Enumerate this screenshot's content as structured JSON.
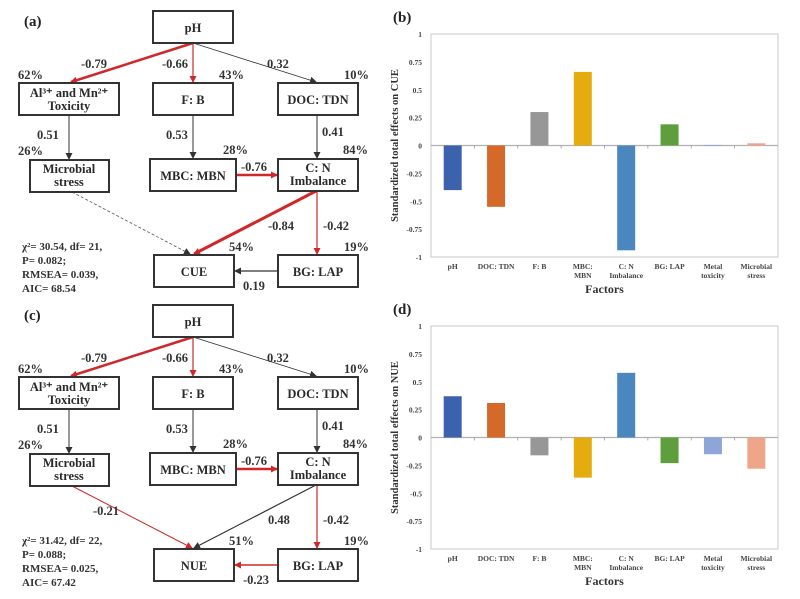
{
  "diagrams": [
    {
      "panel": "(a)",
      "outcome": "CUE",
      "nodes": {
        "ph": "pH",
        "al_line1": "Al³⁺ and Mn²⁺",
        "al_line2": "Toxicity",
        "fb": "F: B",
        "doc": "DOC: TDN",
        "ms_line1": "Microbial",
        "ms_line2": "stress",
        "mbc": "MBC: MBN",
        "cn_line1": "C: N",
        "cn_line2": "Imbalance",
        "out": "CUE",
        "bg": "BG: LAP"
      },
      "r2": {
        "al": "62%",
        "fb": "43%",
        "doc": "10%",
        "ms": "26%",
        "mbc": "28%",
        "cn": "84%",
        "out": "54%",
        "bg": "19%"
      },
      "paths": {
        "ph_al": "-0.79",
        "ph_fb": "-0.66",
        "ph_doc": "0.32",
        "al_ms": "0.51",
        "fb_mbc": "0.53",
        "doc_cn": "0.41",
        "mbc_cn": "-0.76",
        "cn_out": "-0.84",
        "cn_bg": "-0.42",
        "bg_out": "0.19",
        "ms_out": ""
      },
      "stats": {
        "chi": "χ²= 30.54, df= 21,",
        "p": "P= 0.082;",
        "rmsea": "RMSEA= 0.039,",
        "aic": "AIC= 68.54"
      }
    },
    {
      "panel": "(c)",
      "outcome": "NUE",
      "nodes": {
        "ph": "pH",
        "al_line1": "Al³⁺ and Mn²⁺",
        "al_line2": "Toxicity",
        "fb": "F: B",
        "doc": "DOC: TDN",
        "ms_line1": "Microbial",
        "ms_line2": "stress",
        "mbc": "MBC: MBN",
        "cn_line1": "C: N",
        "cn_line2": "Imbalance",
        "out": "NUE",
        "bg": "BG: LAP"
      },
      "r2": {
        "al": "62%",
        "fb": "43%",
        "doc": "10%",
        "ms": "26%",
        "mbc": "28%",
        "cn": "84%",
        "out": "51%",
        "bg": "19%"
      },
      "paths": {
        "ph_al": "-0.79",
        "ph_fb": "-0.66",
        "ph_doc": "0.32",
        "al_ms": "0.51",
        "fb_mbc": "0.53",
        "doc_cn": "0.41",
        "mbc_cn": "-0.76",
        "cn_out": "0.48",
        "cn_bg": "-0.42",
        "bg_out": "-0.23",
        "ms_out": "-0.21"
      },
      "stats": {
        "chi": "χ²= 31.42, df= 22,",
        "p": "P= 0.088;",
        "rmsea": "RMSEA= 0.025,",
        "aic": "AIC= 67.42"
      }
    }
  ],
  "chart_data": [
    {
      "type": "bar",
      "panel": "(b)",
      "title": "",
      "xlabel": "Factors",
      "ylabel": "Standardized  total effects on CUE",
      "ylim": [
        -1,
        1
      ],
      "yticks": [
        "1",
        "0.75",
        "0.5",
        "0.25",
        "0",
        "-0.25",
        "-0.5",
        "-0.75",
        "-1"
      ],
      "categories": [
        "pH",
        "DOC: TDN",
        "F: B",
        "MBC: MBN",
        "C: N Imbalance",
        "BG: LAP",
        "Metal toxicity",
        "Microbial stress"
      ],
      "category_lines": [
        [
          "pH"
        ],
        [
          "DOC: TDN"
        ],
        [
          "F: B"
        ],
        [
          "MBC:",
          "MBN"
        ],
        [
          "C: N",
          "Imbalance"
        ],
        [
          "BG: LAP"
        ],
        [
          "Metal",
          "toxicity"
        ],
        [
          "Microbial",
          "stress"
        ]
      ],
      "values": [
        -0.4,
        -0.55,
        0.3,
        0.66,
        -0.94,
        0.19,
        0.005,
        0.02
      ],
      "colors": [
        "#3d62ad",
        "#d4692a",
        "#979797",
        "#e5ac10",
        "#4a87bf",
        "#5f9e3c",
        "#8ea5d8",
        "#eea58a"
      ]
    },
    {
      "type": "bar",
      "panel": "(d)",
      "title": "",
      "xlabel": "Factors",
      "ylabel": "Standardized  total effects on NUE",
      "ylim": [
        -1,
        1
      ],
      "yticks": [
        "1",
        "0.75",
        "0.5",
        "0.25",
        "0",
        "-0.25",
        "-0.5",
        "-0.75",
        "-1"
      ],
      "categories": [
        "pH",
        "DOC: TDN",
        "F: B",
        "MBC: MBN",
        "C: N Imbalance",
        "BG: LAP",
        "Metal toxicity",
        "Microbial stress"
      ],
      "category_lines": [
        [
          "pH"
        ],
        [
          "DOC: TDN"
        ],
        [
          "F: B"
        ],
        [
          "MBC:",
          "MBN"
        ],
        [
          "C: N",
          "Imbalance"
        ],
        [
          "BG: LAP"
        ],
        [
          "Metal",
          "toxicity"
        ],
        [
          "Microbial",
          "stress"
        ]
      ],
      "values": [
        0.37,
        0.31,
        -0.16,
        -0.36,
        0.58,
        -0.23,
        -0.15,
        -0.28
      ],
      "colors": [
        "#3d62ad",
        "#d4692a",
        "#979797",
        "#e5ac10",
        "#4a87bf",
        "#5f9e3c",
        "#8ea5d8",
        "#eea58a"
      ]
    }
  ],
  "colors": {
    "negative_path": "#d0282a",
    "positive_path": "#333333",
    "nonsig_path": "#555555"
  }
}
